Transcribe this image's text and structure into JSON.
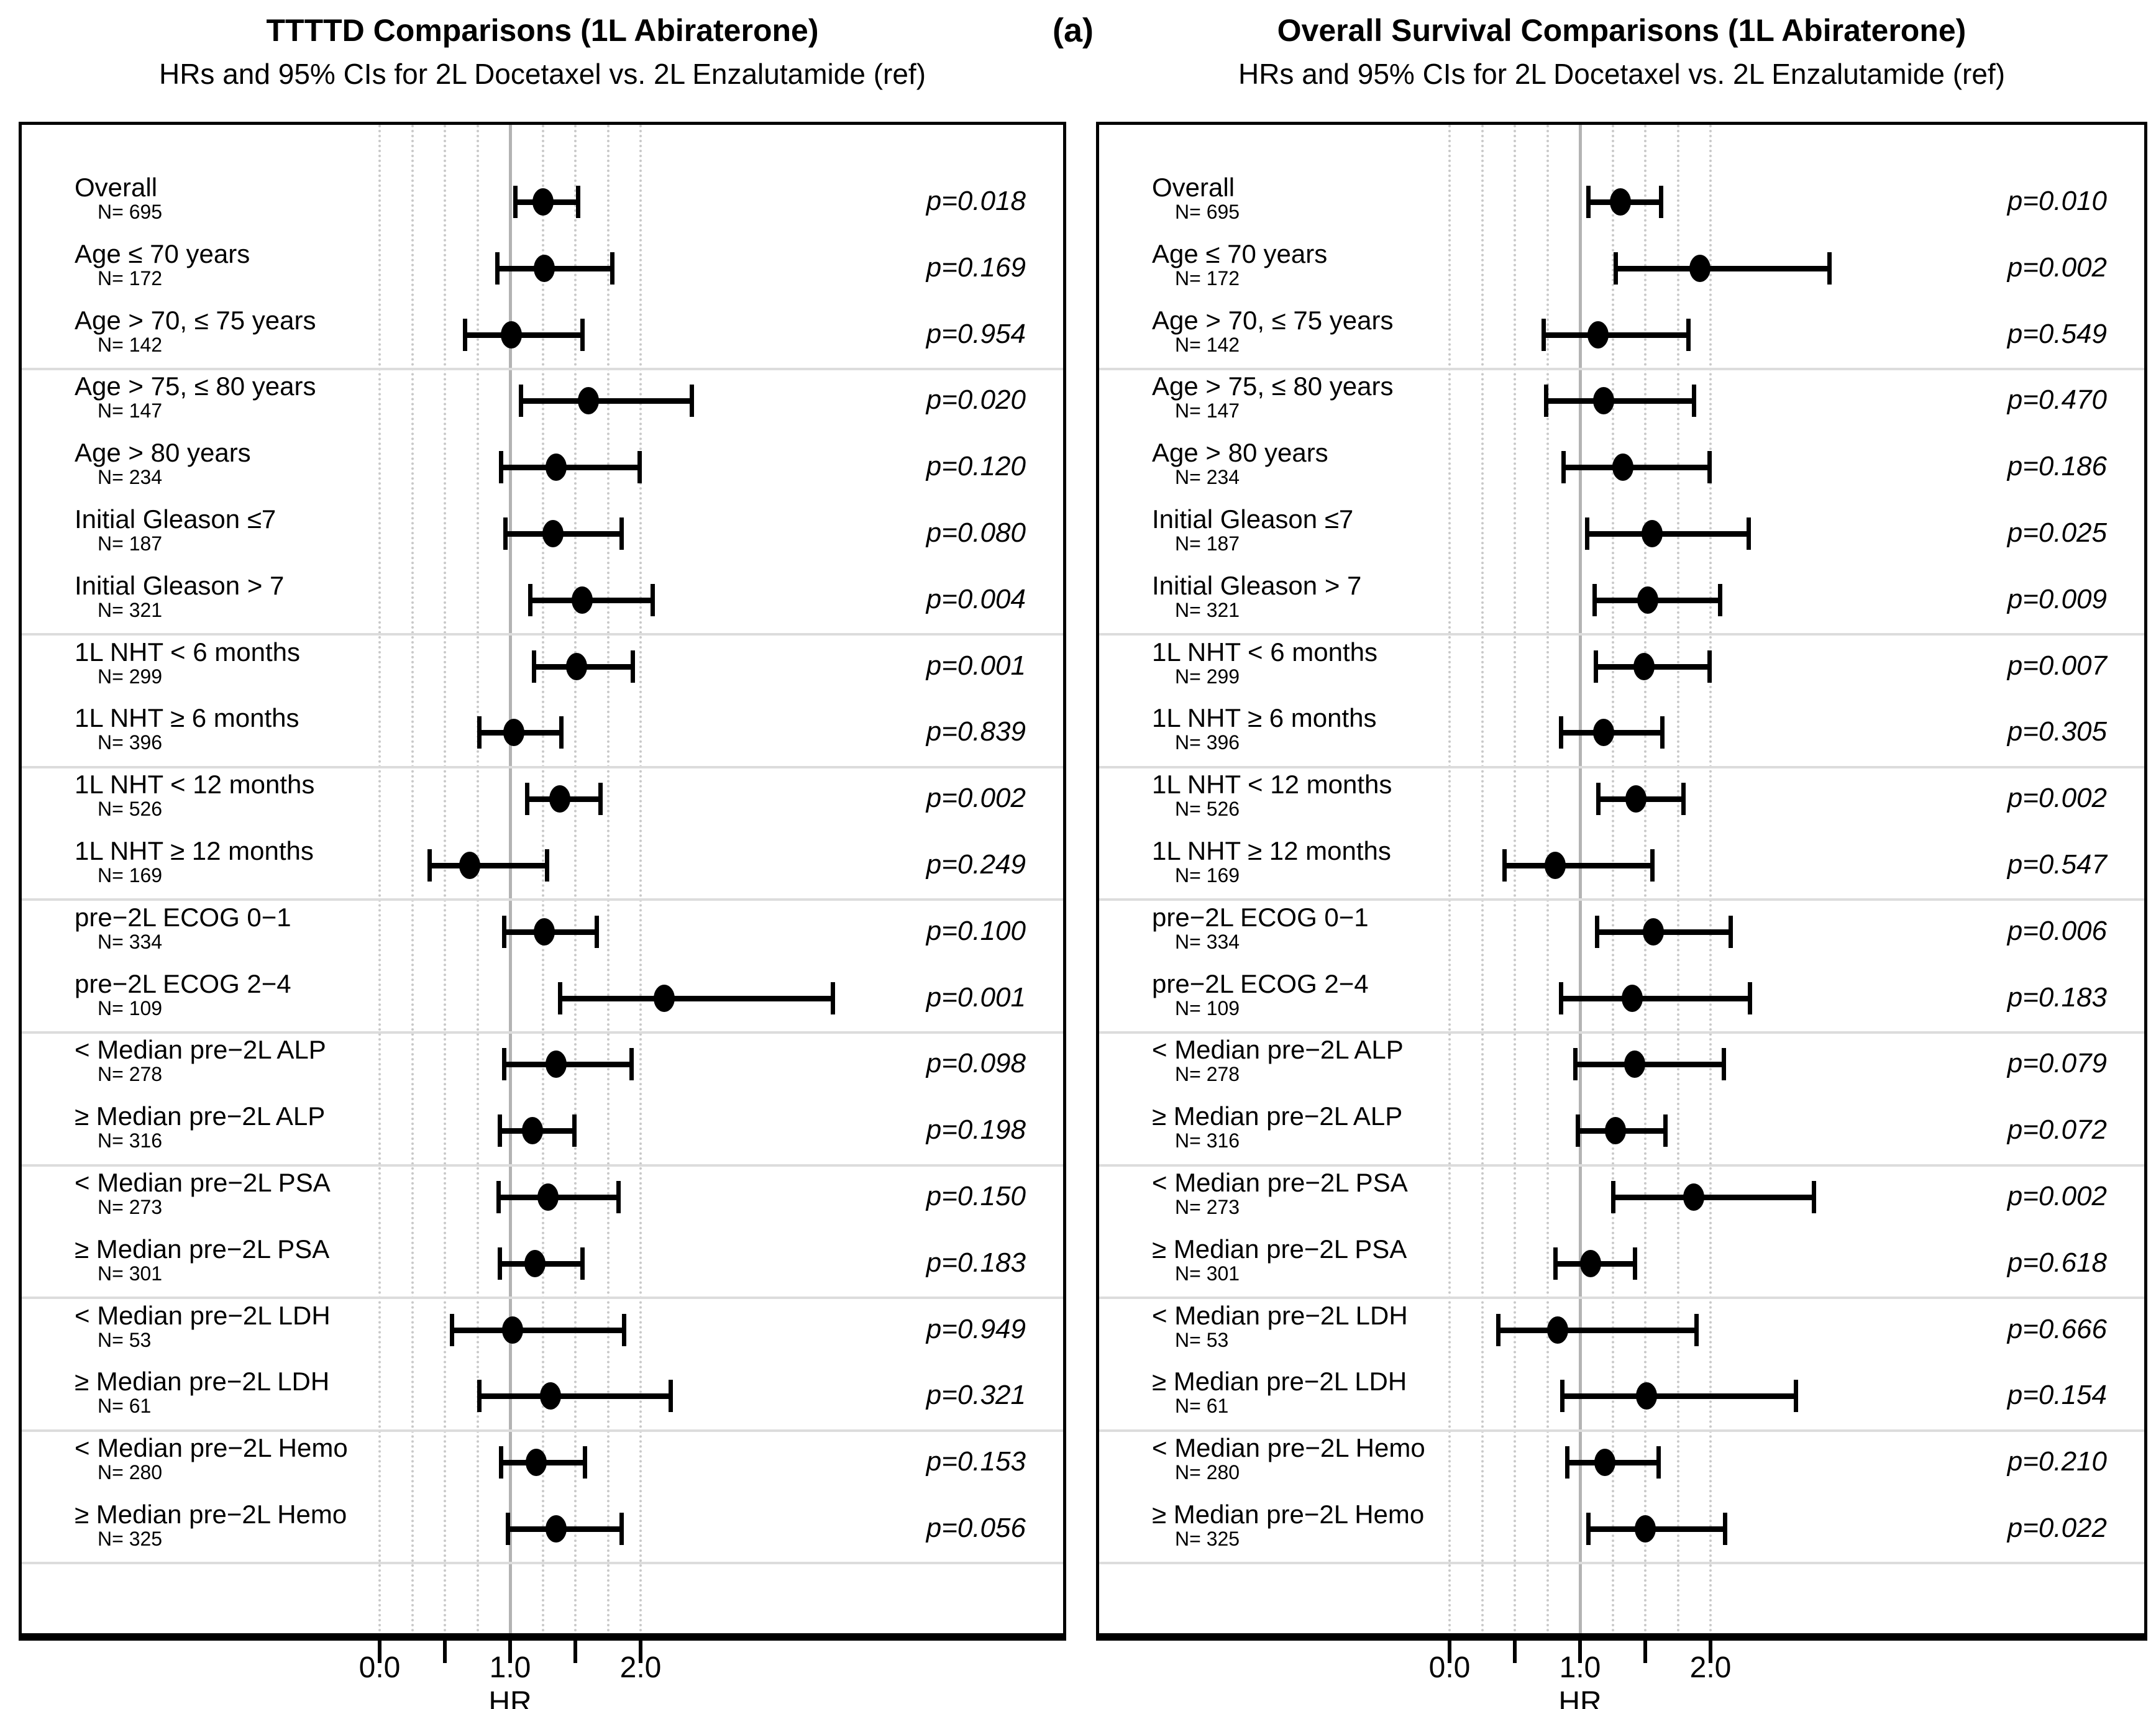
{
  "figure_label": "(a)",
  "chart_data": [
    {
      "type": "scatter",
      "panel": "left",
      "title": "TTTTD Comparisons (1L Abiraterone)",
      "subtitle": "HRs and 95% CIs for 2L Docetaxel vs. 2L Enzalutamide (ref)",
      "xlabel": "HR",
      "x_ticks": [
        {
          "value": 0.0,
          "label": "0.0"
        },
        {
          "value": 0.5,
          "label": ""
        },
        {
          "value": 1.0,
          "label": "1.0"
        },
        {
          "value": 1.5,
          "label": ""
        },
        {
          "value": 2.0,
          "label": "2.0"
        }
      ],
      "gridlines": {
        "dotted_every": 0.25,
        "from": 0.0,
        "to": 2.0,
        "reference_line": 1.0
      },
      "legend_position": "none",
      "separators_after_rows": [
        3,
        7,
        9,
        11,
        13,
        15,
        17,
        19,
        21
      ],
      "rows": [
        {
          "label": "Overall",
          "n": "N= 695",
          "hr": 1.25,
          "lo": 1.04,
          "hi": 1.52,
          "p": "p=0.018"
        },
        {
          "label": "Age ≤ 70 years",
          "n": "N= 172",
          "hr": 1.26,
          "lo": 0.9,
          "hi": 1.78,
          "p": "p=0.169"
        },
        {
          "label": "Age > 70, ≤ 75 years",
          "n": "N= 142",
          "hr": 1.01,
          "lo": 0.65,
          "hi": 1.55,
          "p": "p=0.954"
        },
        {
          "label": "Age > 75, ≤ 80 years",
          "n": "N= 147",
          "hr": 1.6,
          "lo": 1.08,
          "hi": 2.39,
          "p": "p=0.020"
        },
        {
          "label": "Age > 80 years",
          "n": "N= 234",
          "hr": 1.35,
          "lo": 0.93,
          "hi": 1.99,
          "p": "p=0.120"
        },
        {
          "label": "Initial Gleason ≤7",
          "n": "N= 187",
          "hr": 1.33,
          "lo": 0.96,
          "hi": 1.85,
          "p": "p=0.080"
        },
        {
          "label": "Initial Gleason > 7",
          "n": "N= 321",
          "hr": 1.55,
          "lo": 1.15,
          "hi": 2.09,
          "p": "p=0.004"
        },
        {
          "label": "1L NHT < 6 months",
          "n": "N= 299",
          "hr": 1.51,
          "lo": 1.18,
          "hi": 1.94,
          "p": "p=0.001"
        },
        {
          "label": "1L NHT ≥ 6 months",
          "n": "N= 396",
          "hr": 1.03,
          "lo": 0.76,
          "hi": 1.39,
          "p": "p=0.839"
        },
        {
          "label": "1L NHT < 12 months",
          "n": "N= 526",
          "hr": 1.38,
          "lo": 1.13,
          "hi": 1.69,
          "p": "p=0.002"
        },
        {
          "label": "1L NHT ≥ 12 months",
          "n": "N= 169",
          "hr": 0.69,
          "lo": 0.38,
          "hi": 1.28,
          "p": "p=0.249"
        },
        {
          "label": "pre−2L ECOG 0−1",
          "n": "N= 334",
          "hr": 1.26,
          "lo": 0.95,
          "hi": 1.66,
          "p": "p=0.100"
        },
        {
          "label": "pre−2L ECOG 2−4",
          "n": "N= 109",
          "hr": 2.18,
          "lo": 1.38,
          "hi": 3.47,
          "p": "p=0.001"
        },
        {
          "label": "< Median pre−2L ALP",
          "n": "N= 278",
          "hr": 1.35,
          "lo": 0.95,
          "hi": 1.93,
          "p": "p=0.098"
        },
        {
          "label": "≥ Median pre−2L ALP",
          "n": "N= 316",
          "hr": 1.17,
          "lo": 0.92,
          "hi": 1.49,
          "p": "p=0.198"
        },
        {
          "label": "< Median pre−2L PSA",
          "n": "N= 273",
          "hr": 1.29,
          "lo": 0.91,
          "hi": 1.83,
          "p": "p=0.150"
        },
        {
          "label": "≥ Median pre−2L PSA",
          "n": "N= 301",
          "hr": 1.19,
          "lo": 0.92,
          "hi": 1.55,
          "p": "p=0.183"
        },
        {
          "label": "< Median pre−2L LDH",
          "n": "N= 53",
          "hr": 1.02,
          "lo": 0.55,
          "hi": 1.87,
          "p": "p=0.949"
        },
        {
          "label": "≥ Median pre−2L LDH",
          "n": "N= 61",
          "hr": 1.31,
          "lo": 0.76,
          "hi": 2.23,
          "p": "p=0.321"
        },
        {
          "label": "< Median pre−2L Hemo",
          "n": "N= 280",
          "hr": 1.2,
          "lo": 0.93,
          "hi": 1.57,
          "p": "p=0.153"
        },
        {
          "label": "≥ Median pre−2L Hemo",
          "n": "N= 325",
          "hr": 1.35,
          "lo": 0.98,
          "hi": 1.85,
          "p": "p=0.056"
        }
      ]
    },
    {
      "type": "scatter",
      "panel": "right",
      "title": "Overall Survival Comparisons (1L Abiraterone)",
      "subtitle": "HRs and 95% CIs for 2L Docetaxel vs. 2L Enzalutamide (ref)",
      "xlabel": "HR",
      "x_ticks": [
        {
          "value": 0.0,
          "label": "0.0"
        },
        {
          "value": 0.5,
          "label": ""
        },
        {
          "value": 1.0,
          "label": "1.0"
        },
        {
          "value": 1.5,
          "label": ""
        },
        {
          "value": 2.0,
          "label": "2.0"
        }
      ],
      "gridlines": {
        "dotted_every": 0.25,
        "from": 0.0,
        "to": 2.0,
        "reference_line": 1.0
      },
      "legend_position": "none",
      "separators_after_rows": [
        3,
        7,
        9,
        11,
        13,
        15,
        17,
        19,
        21
      ],
      "rows": [
        {
          "label": "Overall",
          "n": "N= 695",
          "hr": 1.31,
          "lo": 1.06,
          "hi": 1.62,
          "p": "p=0.010"
        },
        {
          "label": "Age ≤ 70 years",
          "n": "N= 172",
          "hr": 1.92,
          "lo": 1.27,
          "hi": 2.91,
          "p": "p=0.002"
        },
        {
          "label": "Age > 70, ≤ 75 years",
          "n": "N= 142",
          "hr": 1.14,
          "lo": 0.72,
          "hi": 1.83,
          "p": "p=0.549"
        },
        {
          "label": "Age > 75, ≤ 80 years",
          "n": "N= 147",
          "hr": 1.18,
          "lo": 0.74,
          "hi": 1.87,
          "p": "p=0.470"
        },
        {
          "label": "Age > 80 years",
          "n": "N= 234",
          "hr": 1.33,
          "lo": 0.87,
          "hi": 1.99,
          "p": "p=0.186"
        },
        {
          "label": "Initial Gleason ≤7",
          "n": "N= 187",
          "hr": 1.55,
          "lo": 1.05,
          "hi": 2.29,
          "p": "p=0.025"
        },
        {
          "label": "Initial Gleason > 7",
          "n": "N= 321",
          "hr": 1.52,
          "lo": 1.11,
          "hi": 2.07,
          "p": "p=0.009"
        },
        {
          "label": "1L NHT < 6 months",
          "n": "N= 299",
          "hr": 1.49,
          "lo": 1.12,
          "hi": 1.99,
          "p": "p=0.007"
        },
        {
          "label": "1L NHT ≥ 6 months",
          "n": "N= 396",
          "hr": 1.18,
          "lo": 0.85,
          "hi": 1.63,
          "p": "p=0.305"
        },
        {
          "label": "1L NHT < 12 months",
          "n": "N= 526",
          "hr": 1.43,
          "lo": 1.14,
          "hi": 1.79,
          "p": "p=0.002"
        },
        {
          "label": "1L NHT ≥ 12 months",
          "n": "N= 169",
          "hr": 0.81,
          "lo": 0.42,
          "hi": 1.55,
          "p": "p=0.547"
        },
        {
          "label": "pre−2L ECOG 0−1",
          "n": "N= 334",
          "hr": 1.56,
          "lo": 1.13,
          "hi": 2.15,
          "p": "p=0.006"
        },
        {
          "label": "pre−2L ECOG 2−4",
          "n": "N= 109",
          "hr": 1.4,
          "lo": 0.85,
          "hi": 2.3,
          "p": "p=0.183"
        },
        {
          "label": "< Median pre−2L ALP",
          "n": "N= 278",
          "hr": 1.42,
          "lo": 0.96,
          "hi": 2.1,
          "p": "p=0.079"
        },
        {
          "label": "≥ Median pre−2L ALP",
          "n": "N= 316",
          "hr": 1.27,
          "lo": 0.98,
          "hi": 1.65,
          "p": "p=0.072"
        },
        {
          "label": "< Median pre−2L PSA",
          "n": "N= 273",
          "hr": 1.87,
          "lo": 1.25,
          "hi": 2.79,
          "p": "p=0.002"
        },
        {
          "label": "≥ Median pre−2L PSA",
          "n": "N= 301",
          "hr": 1.08,
          "lo": 0.81,
          "hi": 1.42,
          "p": "p=0.618"
        },
        {
          "label": "< Median pre−2L LDH",
          "n": "N= 53",
          "hr": 0.83,
          "lo": 0.37,
          "hi": 1.89,
          "p": "p=0.666"
        },
        {
          "label": "≥ Median pre−2L LDH",
          "n": "N= 61",
          "hr": 1.51,
          "lo": 0.86,
          "hi": 2.65,
          "p": "p=0.154"
        },
        {
          "label": "< Median pre−2L Hemo",
          "n": "N= 280",
          "hr": 1.19,
          "lo": 0.9,
          "hi": 1.6,
          "p": "p=0.210"
        },
        {
          "label": "≥ Median pre−2L Hemo",
          "n": "N= 325",
          "hr": 1.5,
          "lo": 1.06,
          "hi": 2.11,
          "p": "p=0.022"
        }
      ]
    }
  ]
}
